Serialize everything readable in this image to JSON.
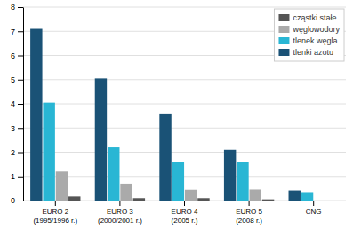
{
  "chart_data": {
    "type": "bar",
    "categories": [
      "EURO 2\n(1995/1996 r.)",
      "EURO 3\n(2000/2001 r.)",
      "EURO 4\n(2005 r.)",
      "EURO 5\n(2008 r.)",
      "CNG"
    ],
    "series": [
      {
        "name": "tlenki azotu",
        "color": "#1a5276",
        "values": [
          7.1,
          5.05,
          3.6,
          2.1,
          0.42
        ]
      },
      {
        "name": "tlenek węgla",
        "color": "#29b6d4",
        "values": [
          4.05,
          2.2,
          1.6,
          1.6,
          0.35
        ]
      },
      {
        "name": "węglowodory",
        "color": "#aaaaaa",
        "values": [
          1.2,
          0.7,
          0.45,
          0.46,
          0.0
        ]
      },
      {
        "name": "cząstki stałe",
        "color": "#555555",
        "values": [
          0.17,
          0.1,
          0.1,
          0.05,
          0.0
        ]
      }
    ],
    "ylim": [
      0,
      8
    ],
    "yticks": [
      0,
      1,
      2,
      3,
      4,
      5,
      6,
      7,
      8
    ],
    "grid": true,
    "legend": "upper right"
  }
}
